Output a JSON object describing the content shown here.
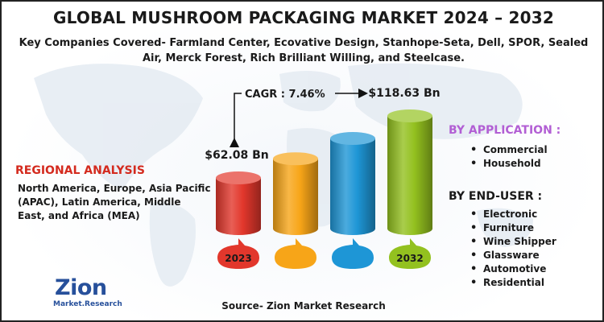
{
  "title": "GLOBAL MUSHROOM PACKAGING MARKET 2024 – 2032",
  "subtitle": "Key Companies Covered- Farmland Center, Ecovative Design, Stanhope-Seta, Dell, SPOR, Sealed Air, Merck Forest, Rich Brilliant Willing, and Steelcase.",
  "regional": {
    "title": "REGIONAL ANALYSIS",
    "text": "North America, Europe, Asia Pacific (APAC), Latin America, Middle East, and Africa (MEA)"
  },
  "by_application": {
    "title": "BY APPLICATION :",
    "items": [
      "Commercial",
      "Household"
    ]
  },
  "by_end_user": {
    "title": "BY END-USER :",
    "items": [
      "Electronic",
      "Furniture",
      "Wine Shipper",
      "Glassware",
      "Automotive",
      "Residential"
    ]
  },
  "source": "Source- Zion Market Research",
  "logo": {
    "main": "Zion",
    "sub": "Market.Research"
  },
  "colors": {
    "red": "#e2372c",
    "orange": "#f7a518",
    "blue": "#1e96d6",
    "green": "#93c11f",
    "title_red": "#d42a1e",
    "application_purple": "#b25fd4",
    "logo_blue": "#27509b"
  },
  "chart_data": {
    "type": "bar",
    "categories": [
      "2023",
      "",
      "",
      "2032"
    ],
    "values": [
      62.08,
      null,
      null,
      118.63
    ],
    "value_labels": [
      "$62.08 Bn",
      "",
      "",
      "$118.63 Bn"
    ],
    "cagr_label": "CAGR : 7.46%",
    "relative_heights": [
      0.45,
      0.62,
      0.8,
      1.0
    ]
  }
}
